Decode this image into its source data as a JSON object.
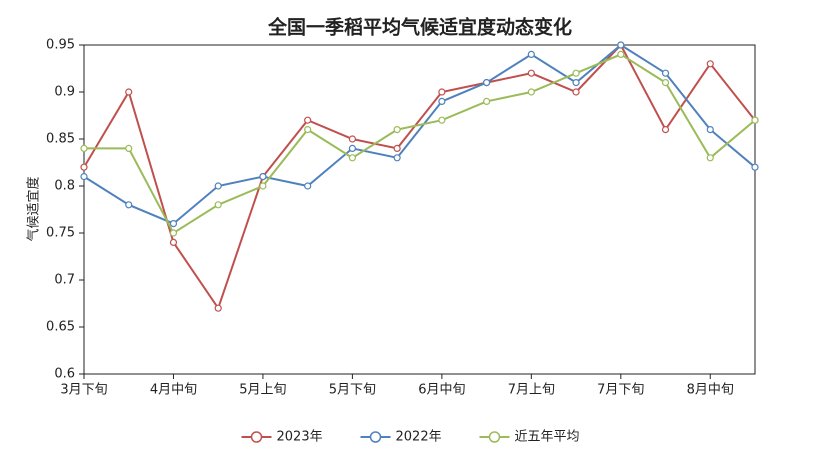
{
  "chart_data": {
    "type": "line",
    "title": "全国一季稻平均气候适宜度动态变化",
    "y_label": "气候适宜度",
    "categories": [
      "3月下旬",
      null,
      "4月中旬",
      null,
      "5月上旬",
      null,
      "5月下旬",
      null,
      "6月中旬",
      null,
      "7月上旬",
      null,
      "7月下旬",
      null,
      "8月中旬",
      null
    ],
    "series": [
      {
        "name": "2023年",
        "color": "#c0504d",
        "values": [
          0.82,
          0.9,
          0.74,
          0.67,
          0.81,
          0.87,
          0.85,
          0.84,
          0.9,
          0.91,
          0.92,
          0.9,
          0.95,
          0.86,
          0.93,
          0.87
        ]
      },
      {
        "name": "2022年",
        "color": "#4f81bd",
        "values": [
          0.81,
          0.78,
          0.76,
          0.8,
          0.81,
          0.8,
          0.84,
          0.83,
          0.89,
          0.91,
          0.94,
          0.91,
          0.95,
          0.92,
          0.86,
          0.82
        ]
      },
      {
        "name": "近五年平均",
        "color": "#9bbb59",
        "values": [
          0.84,
          0.84,
          0.75,
          0.78,
          0.8,
          0.86,
          0.83,
          0.86,
          0.87,
          0.89,
          0.9,
          0.92,
          0.94,
          0.91,
          0.83,
          0.87
        ]
      }
    ],
    "ylim": [
      0.6,
      0.95
    ],
    "yticks": [
      0.6,
      0.65,
      0.7,
      0.75,
      0.8,
      0.85,
      0.9,
      0.95
    ],
    "legend": "bottom"
  }
}
